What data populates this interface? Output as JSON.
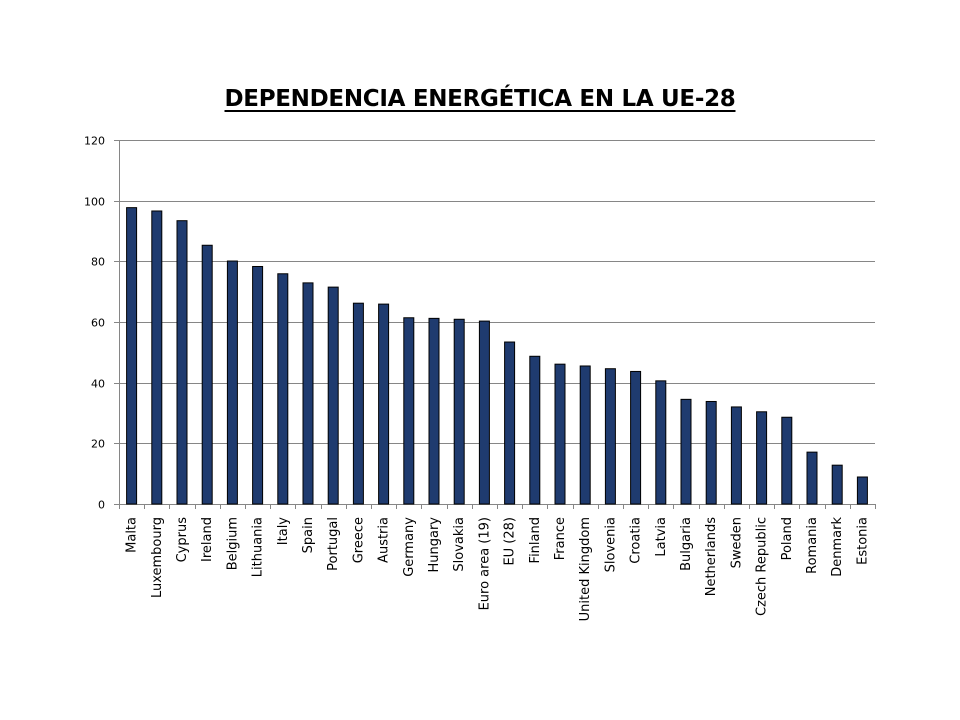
{
  "chart_data": {
    "type": "bar",
    "title": "DEPENDENCIA ENERGÉTICA EN LA UE-28",
    "xlabel": "",
    "ylabel": "",
    "ylim": [
      0,
      120
    ],
    "yticks": [
      0,
      20,
      40,
      60,
      80,
      100,
      120
    ],
    "grid": true,
    "legend": "none",
    "bar_color": "#1f3b6f",
    "categories": [
      "Malta",
      "Luxembourg",
      "Cyprus",
      "Ireland",
      "Belgium",
      "Lithuania",
      "Italy",
      "Spain",
      "Portugal",
      "Greece",
      "Austria",
      "Germany",
      "Hungary",
      "Slovakia",
      "Euro area (19)",
      "EU (28)",
      "Finland",
      "France",
      "United Kingdom",
      "Slovenia",
      "Croatia",
      "Latvia",
      "Bulgaria",
      "Netherlands",
      "Sweden",
      "Czech Republic",
      "Poland",
      "Romania",
      "Denmark",
      "Estonia"
    ],
    "values": [
      97.7,
      96.6,
      93.4,
      85.3,
      80.1,
      78.3,
      75.9,
      72.9,
      71.5,
      66.2,
      65.9,
      61.4,
      61.2,
      60.9,
      60.3,
      53.4,
      48.7,
      46.1,
      45.5,
      44.6,
      43.7,
      40.6,
      34.5,
      33.8,
      32.0,
      30.4,
      28.6,
      17.1,
      12.8,
      8.9
    ]
  }
}
